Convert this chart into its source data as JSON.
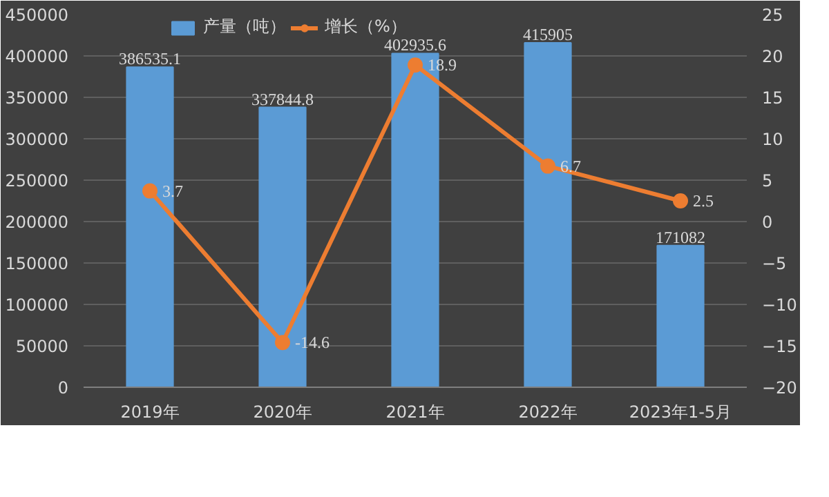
{
  "chart_data": {
    "type": "bar",
    "categories": [
      "2019年",
      "2020年",
      "2021年",
      "2022年",
      "2023年1-5月"
    ],
    "series": [
      {
        "name": "产量（吨）",
        "color": "#5b9bd5",
        "values": [
          386535.1,
          337844.8,
          402935.6,
          415905,
          171082
        ]
      },
      {
        "name": "增长（%）",
        "type": "line",
        "axis": "y2",
        "color": "#ed7d31",
        "marker": "circle",
        "values": [
          3.7,
          -14.6,
          18.9,
          6.7,
          2.5
        ]
      }
    ],
    "ylim": [
      0,
      450000
    ],
    "yticks": [
      0,
      50000,
      100000,
      150000,
      200000,
      250000,
      300000,
      350000,
      400000,
      450000
    ],
    "y2lim": [
      -20,
      25
    ],
    "y2ticks": [
      -20,
      -15,
      -10,
      -5,
      0,
      5,
      10,
      15,
      20,
      25
    ],
    "data_labels": true,
    "grid": "y",
    "legend": "top"
  }
}
